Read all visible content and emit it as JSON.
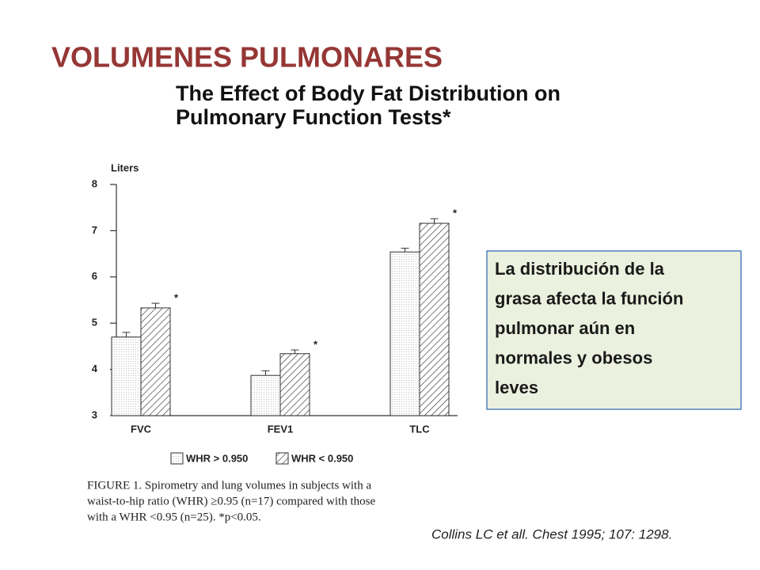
{
  "slide_title": "VOLUMENES PULMONARES",
  "textbox": [
    "La distribución de la",
    "grasa afecta la función",
    "pulmonar aún en",
    "normales y obesos",
    "leves"
  ],
  "citation": "Collins LC et all. Chest 1995; 107: 1298.",
  "chart_data": {
    "type": "bar",
    "title": [
      "The Effect of Body Fat Distribution on",
      "Pulmonary Function Tests*"
    ],
    "y_label": "Liters",
    "categories": [
      "FVC",
      "FEV1",
      "TLC"
    ],
    "series": [
      {
        "name": "WHR > 0.950",
        "color": "#ffffff",
        "values": [
          4.7,
          3.87,
          6.54
        ],
        "errors": [
          0.1,
          0.1,
          0.08
        ]
      },
      {
        "name": "WHR < 0.950",
        "color": "#333333",
        "values": [
          5.33,
          4.34,
          7.16
        ],
        "errors": [
          0.1,
          0.08,
          0.1
        ],
        "annotations": [
          "*",
          "*",
          "*"
        ]
      }
    ],
    "ylim": [
      3,
      8
    ],
    "yticks": [
      3,
      4,
      5,
      6,
      7,
      8
    ],
    "caption": [
      "FIGURE 1. Spirometry and lung volumes in subjects with a",
      "waist-to-hip ratio (WHR) ≥0.95 (n=17) compared with those",
      "with a WHR <0.95 (n=25). *p<0.05."
    ]
  }
}
